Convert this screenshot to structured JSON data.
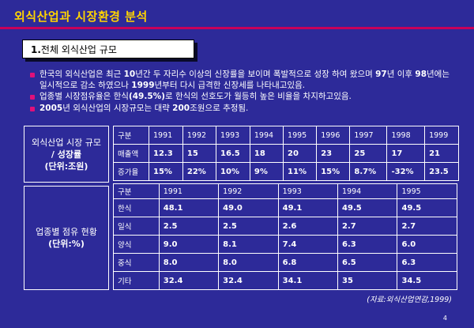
{
  "title": "외식산업과 시장환경 분석",
  "section": {
    "number": "1.",
    "label": "전체 외식산업 규모"
  },
  "bullets": [
    {
      "parts": [
        {
          "t": "한국의 외식산업은 최근 ",
          "b": false
        },
        {
          "t": "10",
          "b": true
        },
        {
          "t": "년간  두 자리수 이상의 신장률을 보이며 폭발적으로 성장 하여 왔으며 ",
          "b": false
        },
        {
          "t": "97",
          "b": true
        },
        {
          "t": "년 이후 ",
          "b": false
        },
        {
          "t": "98",
          "b": true
        },
        {
          "t": "년에는 일시적으로 감소 하였으나 ",
          "b": false
        },
        {
          "t": "1999",
          "b": true
        },
        {
          "t": "년부터 다시 급격한 신장세를 나타내고있음.",
          "b": false
        }
      ]
    },
    {
      "parts": [
        {
          "t": "업종별 시장점유율은 한식",
          "b": false
        },
        {
          "t": "(49.5%)",
          "b": true
        },
        {
          "t": "로 한식의 선호도가 월등히 높은 비율을 차지하고있음.",
          "b": false
        }
      ]
    },
    {
      "parts": [
        {
          "t": "2005",
          "b": true
        },
        {
          "t": "년 외식산업의 시장규모는 대략 ",
          "b": false
        },
        {
          "t": "200",
          "b": true
        },
        {
          "t": "조원으로 추정됨.",
          "b": false
        }
      ]
    }
  ],
  "table1": {
    "label_line1": "외식산업 시장 규모",
    "label_line2": "/ 성장률",
    "label_line3": "(단위:조원)",
    "header": [
      "구분",
      "1991",
      "1992",
      "1993",
      "1994",
      "1995",
      "1996",
      "1997",
      "1998",
      "1999"
    ],
    "rows": [
      [
        "매출액",
        "12.3",
        "15",
        "16.5",
        "18",
        "20",
        "23",
        "25",
        "17",
        "21"
      ],
      [
        "증가율",
        "15%",
        "22%",
        "10%",
        "9%",
        "11%",
        "15%",
        "8.7%",
        "-32%",
        "23.5"
      ]
    ]
  },
  "table2": {
    "label_line1": "업종별 점유 현황",
    "label_line2": "(단위:%)",
    "header": [
      "구분",
      "1991",
      "1992",
      "1993",
      "1994",
      "1995"
    ],
    "rows": [
      [
        "한식",
        "48.1",
        "49.0",
        "49.1",
        "49.5",
        "49.5"
      ],
      [
        "일식",
        "2.5",
        "2.5",
        "2.6",
        "2.7",
        "2.7"
      ],
      [
        "양식",
        "9.0",
        "8.1",
        "7.4",
        "6.3",
        "6.0"
      ],
      [
        "중식",
        "8.0",
        "8.0",
        "6.8",
        "6.5",
        "6.3"
      ],
      [
        "기타",
        "32.4",
        "32.4",
        "34.1",
        "35",
        "34.5"
      ]
    ]
  },
  "source": "(자료:외식산업연감,1999)",
  "page_number": "4",
  "colors": {
    "background": "#2d2a99",
    "title": "#ffd400",
    "accent": "#c8005a",
    "bullet": "#e0107a"
  }
}
